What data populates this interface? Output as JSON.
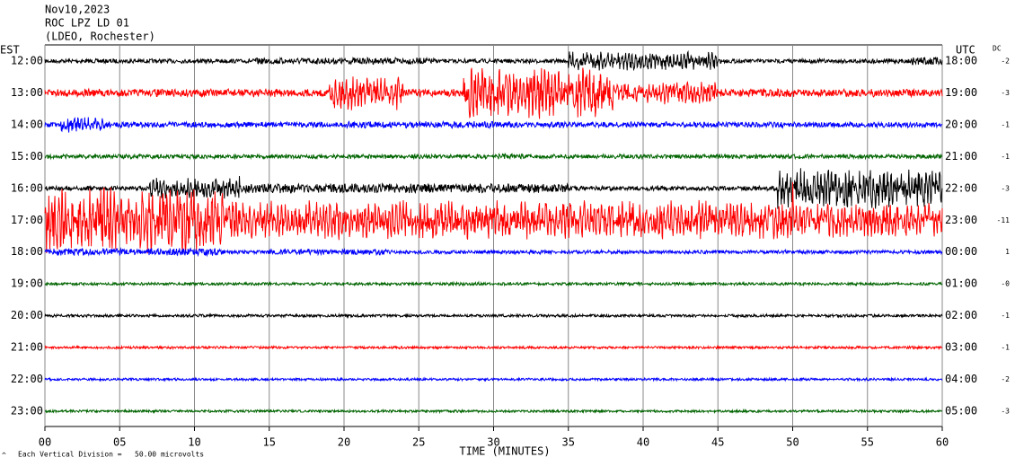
{
  "chart_data": {
    "type": "helicorder",
    "header": [
      "Nov10,2023",
      "ROC LPZ LD 01",
      "(LDEO, Rochester)"
    ],
    "left_axis_title": "EST",
    "right_axis_title": "UTC",
    "dc_title": "DC",
    "x_label": "TIME (MINUTES)",
    "footnote": "Each Vertical Division =   50.00 microvolts",
    "xlim": [
      0,
      60
    ],
    "xticks": [
      {
        "value": 0,
        "label": "00"
      },
      {
        "value": 5,
        "label": "05"
      },
      10,
      15,
      20,
      25,
      30,
      35,
      40,
      45,
      50,
      55,
      60
    ],
    "rows": [
      {
        "est": "12:00",
        "utc": "18:00",
        "dc": "-2",
        "color": "#000000"
      },
      {
        "est": "13:00",
        "utc": "19:00",
        "dc": "-3",
        "color": "#ff0000"
      },
      {
        "est": "14:00",
        "utc": "20:00",
        "dc": "-1",
        "color": "#0000ff"
      },
      {
        "est": "15:00",
        "utc": "21:00",
        "dc": "-1",
        "color": "#006400"
      },
      {
        "est": "16:00",
        "utc": "22:00",
        "dc": "-3",
        "color": "#000000"
      },
      {
        "est": "17:00",
        "utc": "23:00",
        "dc": "-11",
        "color": "#ff0000"
      },
      {
        "est": "18:00",
        "utc": "00:00",
        "dc": "1",
        "color": "#0000ff"
      },
      {
        "est": "19:00",
        "utc": "01:00",
        "dc": "-0",
        "color": "#006400"
      },
      {
        "est": "20:00",
        "utc": "02:00",
        "dc": "-1",
        "color": "#000000"
      },
      {
        "est": "21:00",
        "utc": "03:00",
        "dc": "-1",
        "color": "#ff0000"
      },
      {
        "est": "22:00",
        "utc": "04:00",
        "dc": "-2",
        "color": "#0000ff"
      },
      {
        "est": "23:00",
        "utc": "05:00",
        "dc": "-3",
        "color": "#006400"
      }
    ]
  }
}
